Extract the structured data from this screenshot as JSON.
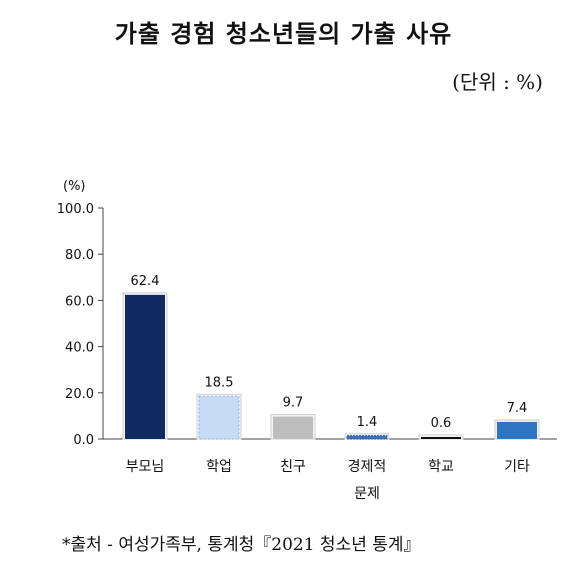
{
  "title": "가출 경험 청소년들의 가출 사유",
  "unit_note": "(단위 : %)",
  "source": "*출처 - 여성가족부, 통계청『2021 청소년 통계』",
  "chart_data": {
    "type": "bar",
    "title": "가출 경험 청소년들의 가출 사유",
    "y_unit_label": "(%)",
    "categories": [
      "부모님",
      "학업",
      "친구",
      "경제적 문제",
      "학교",
      "기타"
    ],
    "category_lines": [
      [
        "부모님"
      ],
      [
        "학업"
      ],
      [
        "친구"
      ],
      [
        "경제적",
        "문제"
      ],
      [
        "학교"
      ],
      [
        "기타"
      ]
    ],
    "values": [
      62.4,
      18.5,
      9.7,
      1.4,
      0.6,
      7.4
    ],
    "value_labels": [
      "62.4",
      "18.5",
      "9.7",
      "1.4",
      "0.6",
      "7.4"
    ],
    "bar_colors": [
      "#102a63",
      "#c6dcf5",
      "#bdbdbd",
      "#3f72b8",
      "#111111",
      "#2f75c4"
    ],
    "ylim": [
      0,
      100
    ],
    "yticks": [
      0,
      20,
      40,
      60,
      80,
      100
    ],
    "ytick_labels": [
      "0.0",
      "20.0",
      "40.0",
      "60.0",
      "80.0",
      "100.0"
    ],
    "grid": false,
    "legend": "none"
  }
}
